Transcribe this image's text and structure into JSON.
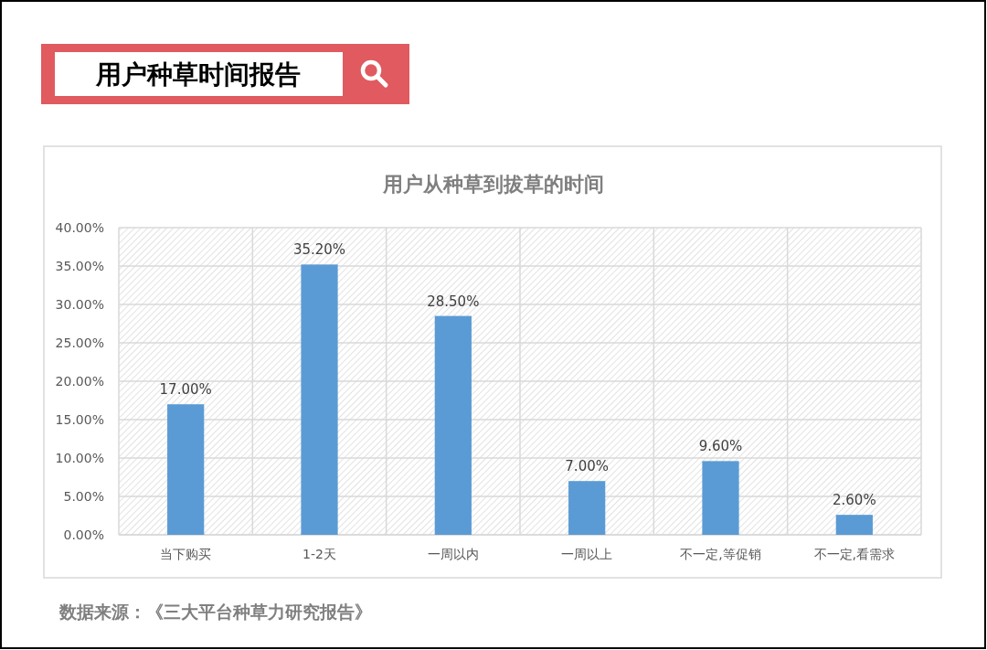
{
  "chart_data": {
    "type": "bar",
    "title": "用户种草时间报告",
    "subtitle": "用户从种草到拔草的时间",
    "categories": [
      "当下购买",
      "1-2天",
      "一周以内",
      "一周以上",
      "不一定,等促销",
      "不一定,看需求"
    ],
    "values": [
      17,
      35.2,
      28.5,
      7,
      9.6,
      2.6
    ],
    "color": "#5b9bd5",
    "value_labels": [
      "17.00%",
      "35.20%",
      "28.50%",
      "7.00%",
      "9.60%",
      "2.60%"
    ],
    "ylim": [
      0,
      40
    ],
    "yticks": [
      {
        "value": 0,
        "label": "0.00%"
      },
      {
        "value": 5,
        "label": "5.00%"
      },
      {
        "value": 10,
        "label": "10.00%"
      },
      {
        "value": 15,
        "label": "15.00%"
      },
      {
        "value": 20,
        "label": "20.00%"
      },
      {
        "value": 25,
        "label": "25.00%"
      },
      {
        "value": 30,
        "label": "30.00%"
      },
      {
        "value": 35,
        "label": "35.00%"
      },
      {
        "value": 40,
        "label": "40.00%"
      }
    ],
    "grid": true,
    "annotations": [
      "数据来源：《三大平台种草力研究报告》"
    ]
  }
}
